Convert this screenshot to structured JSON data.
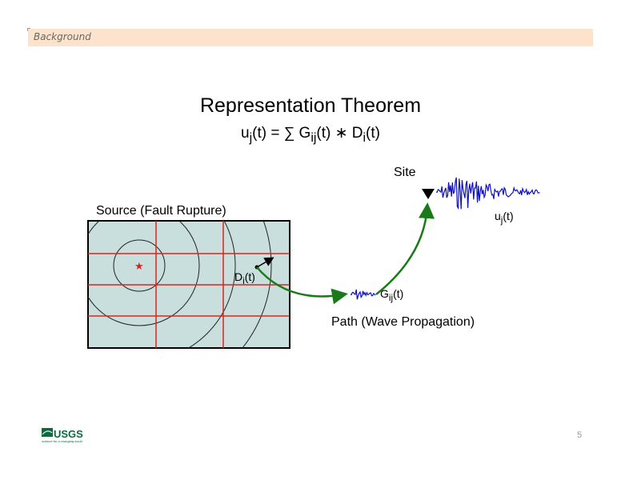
{
  "header": {
    "section": "Background"
  },
  "slide": {
    "title": "Representation Theorem",
    "equation": {
      "u": "u",
      "j": "j",
      "t": "(t) = ∑ G",
      "ij": "ij",
      "t2": "(t) ∗ D",
      "i": "i",
      "t3": "(t)"
    },
    "source_label": "Source (Fault Rupture)",
    "site_label": "Site",
    "path_label": "Path (Wave Propagation)",
    "d_label": {
      "base": "D",
      "sub": "i",
      "tail": "(t)"
    },
    "g_label": {
      "base": "G",
      "sub": "ij",
      "tail": "(t)"
    },
    "u_label": {
      "base": "u",
      "sub": "j",
      "tail": "(t)"
    }
  },
  "footer": {
    "page_number": "5",
    "logo": "USGS science for a changing world"
  },
  "colors": {
    "banner": "#fde3cc",
    "fault_fill": "#c9dfdd",
    "grid": "#e02020",
    "arrow": "#1a7a1a",
    "seismogram": "#1010c0"
  }
}
